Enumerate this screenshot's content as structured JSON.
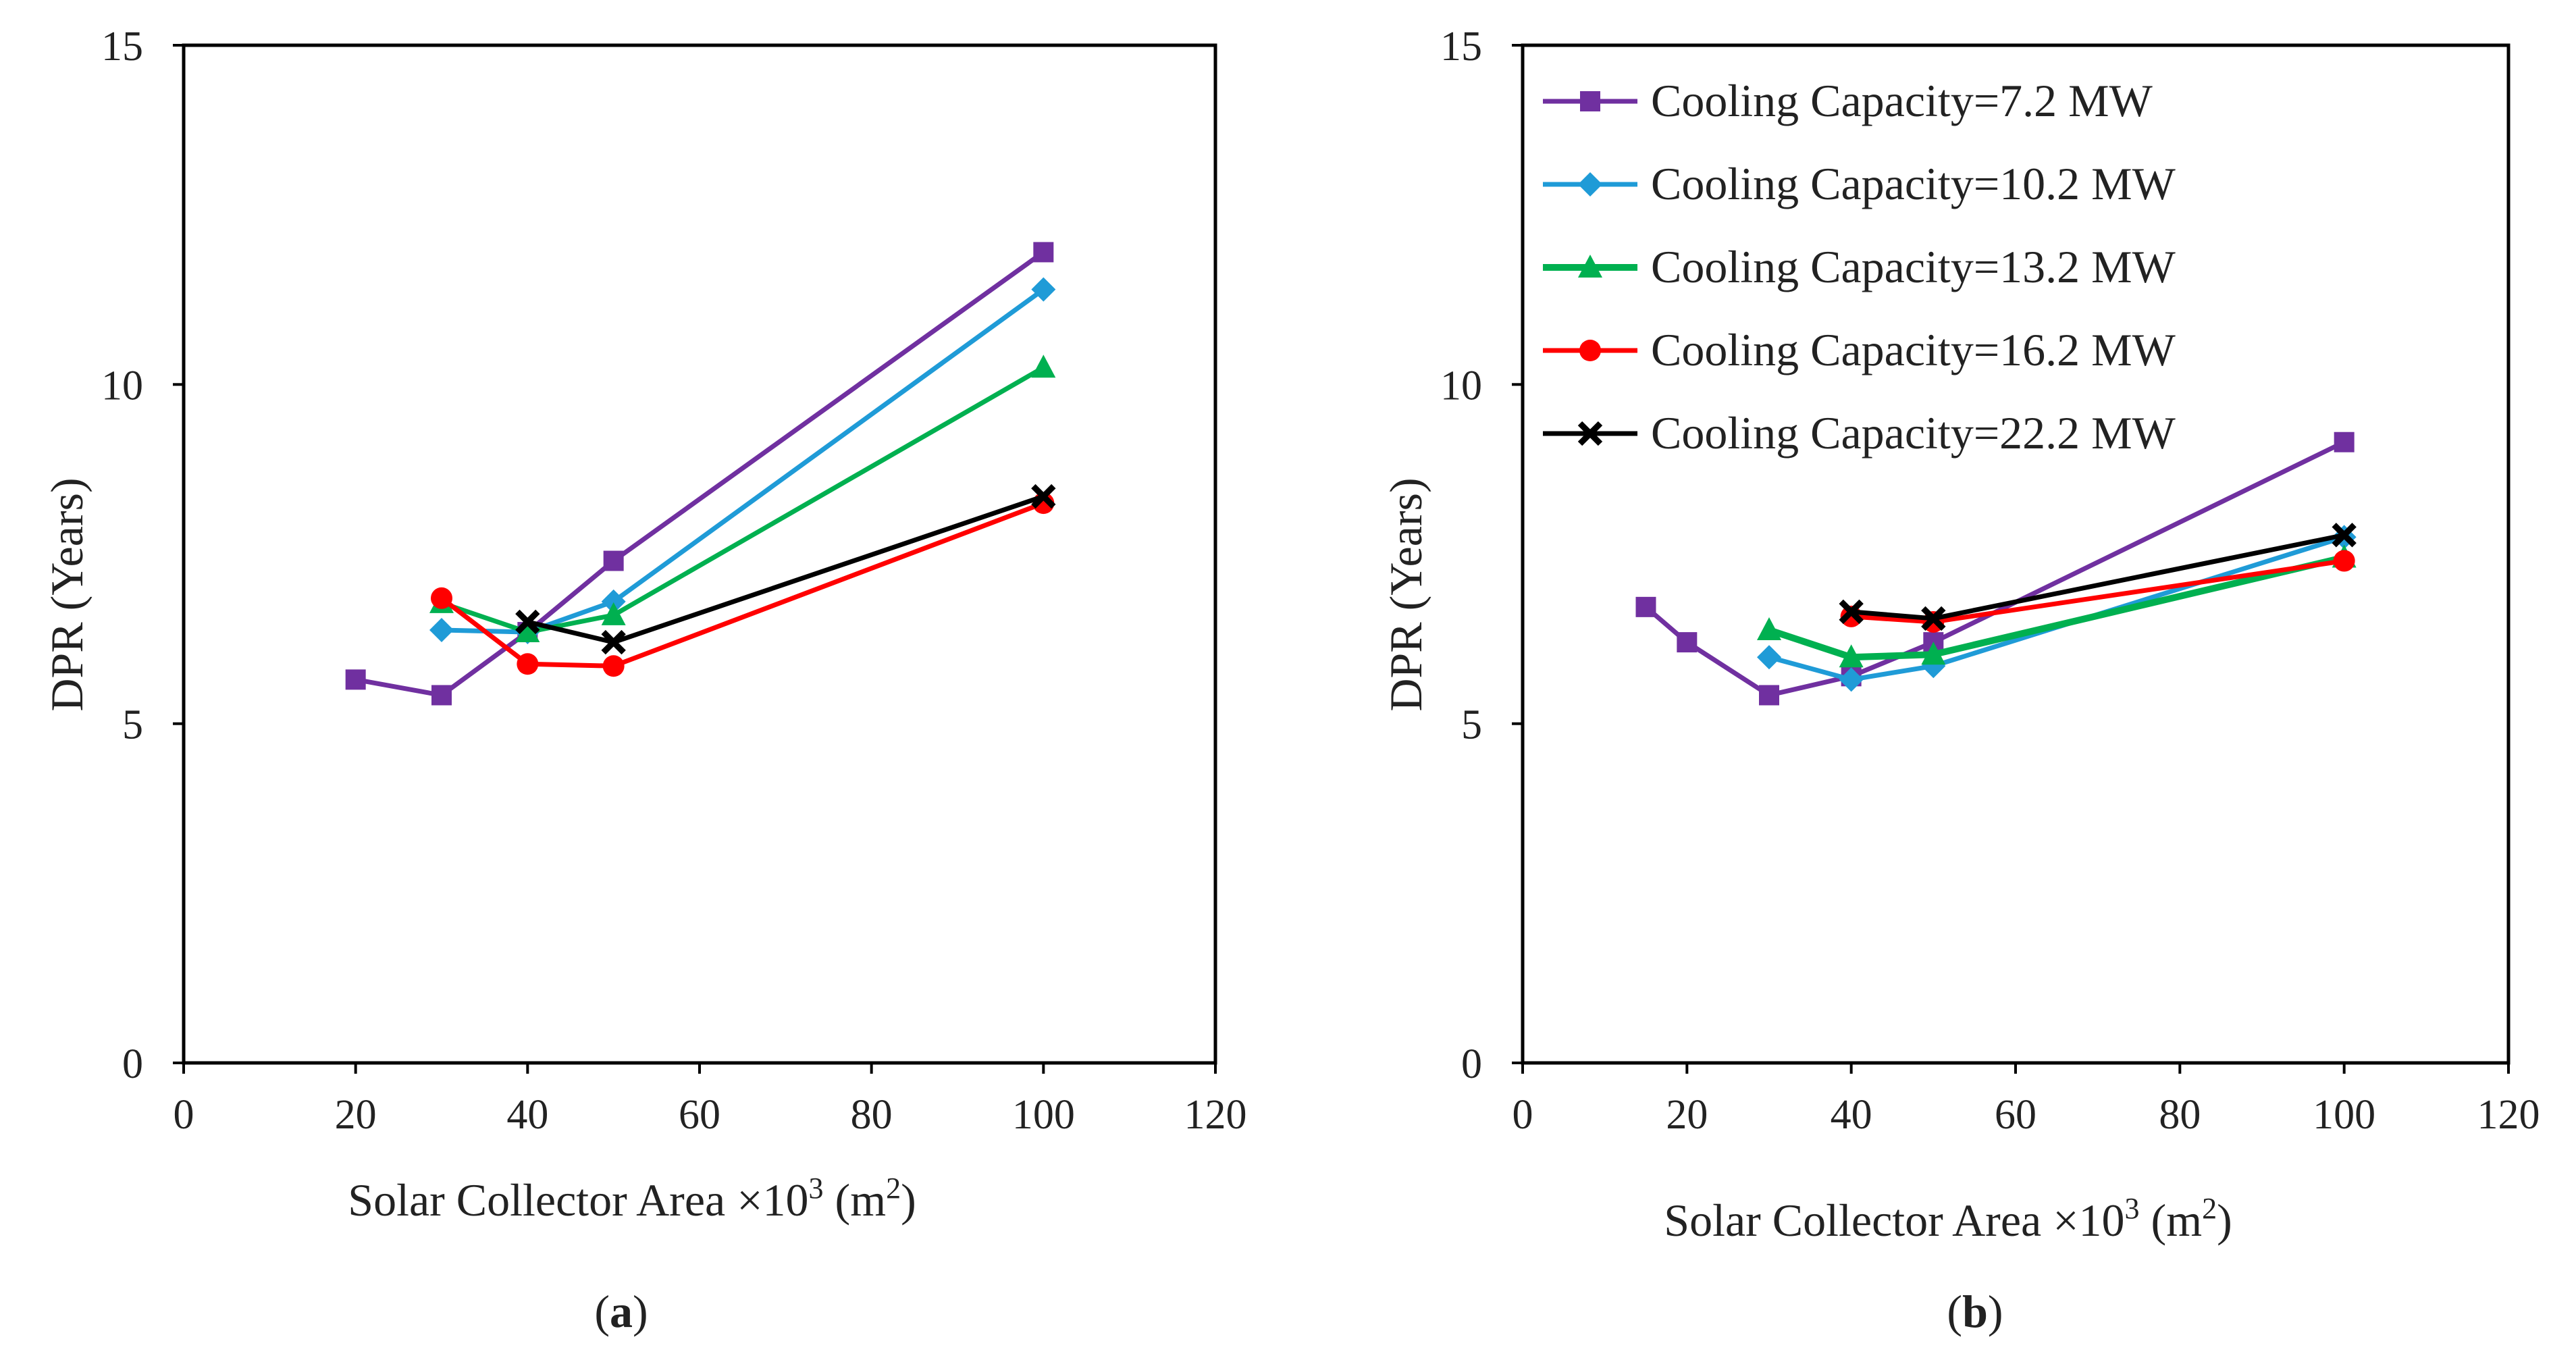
{
  "chart_data": [
    {
      "type": "line",
      "panel_label": "a",
      "xlabel": "Solar Collector Area ×10",
      "xlabel_sup": "3",
      "xlabel_unit": "(m",
      "xlabel_unit_sup": "2",
      "xlabel_unit_close": ")",
      "ylabel": "DPR (Years)",
      "xlim": [
        0,
        120
      ],
      "ylim": [
        0,
        15
      ],
      "xticks": [
        "0",
        "20",
        "40",
        "60",
        "80",
        "100",
        "120"
      ],
      "yticks": [
        "0",
        "5",
        "10",
        "15"
      ],
      "legend": "none",
      "series": [
        {
          "name": "Cooling Capacity=7.2 MW",
          "color": "#7030a0",
          "marker": "square",
          "x": [
            20,
            30,
            40,
            50,
            100
          ],
          "y": [
            5.65,
            5.42,
            6.35,
            7.4,
            11.95
          ]
        },
        {
          "name": "Cooling Capacity=10.2 MW",
          "color": "#1f9bd7",
          "marker": "diamond",
          "x": [
            30,
            40,
            50,
            100
          ],
          "y": [
            6.38,
            6.35,
            6.8,
            11.4
          ]
        },
        {
          "name": "Cooling Capacity=13.2 MW",
          "color": "#00b050",
          "marker": "triangle",
          "x": [
            30,
            40,
            50,
            100
          ],
          "y": [
            6.78,
            6.35,
            6.6,
            10.25
          ]
        },
        {
          "name": "Cooling Capacity=16.2 MW",
          "color": "#ff0000",
          "marker": "circle",
          "x": [
            30,
            40,
            50,
            100
          ],
          "y": [
            6.85,
            5.88,
            5.85,
            8.25
          ]
        },
        {
          "name": "Cooling Capacity=22.2 MW",
          "color": "#000000",
          "marker": "x",
          "x": [
            40,
            50,
            100
          ],
          "y": [
            6.5,
            6.2,
            8.35
          ]
        }
      ]
    },
    {
      "type": "line",
      "panel_label": "b",
      "xlabel": "Solar Collector Area ×10",
      "xlabel_sup": "3",
      "xlabel_unit": "(m",
      "xlabel_unit_sup": "2",
      "xlabel_unit_close": ")",
      "ylabel": "DPR (Years)",
      "xlim": [
        0,
        120
      ],
      "ylim": [
        0,
        15
      ],
      "xticks": [
        "0",
        "20",
        "40",
        "60",
        "80",
        "100",
        "120"
      ],
      "yticks": [
        "0",
        "5",
        "10",
        "15"
      ],
      "legend": "top-left",
      "series": [
        {
          "name": "Cooling Capacity=7.2 MW",
          "color": "#7030a0",
          "marker": "square",
          "x": [
            15,
            20,
            30,
            40,
            50,
            100
          ],
          "y": [
            6.72,
            6.2,
            5.42,
            5.7,
            6.2,
            9.15
          ]
        },
        {
          "name": "Cooling Capacity=10.2 MW",
          "color": "#1f9bd7",
          "marker": "diamond",
          "x": [
            30,
            40,
            50,
            100
          ],
          "y": [
            5.98,
            5.65,
            5.85,
            7.75
          ]
        },
        {
          "name": "Cooling Capacity=13.2 MW",
          "color": "#00b050",
          "marker": "triangle",
          "x": [
            30,
            40,
            50,
            100
          ],
          "y": [
            6.38,
            5.98,
            6.02,
            7.45
          ]
        },
        {
          "name": "Cooling Capacity=16.2 MW",
          "color": "#ff0000",
          "marker": "circle",
          "x": [
            40,
            50,
            100
          ],
          "y": [
            6.58,
            6.5,
            7.4
          ]
        },
        {
          "name": "Cooling Capacity=22.2 MW",
          "color": "#000000",
          "marker": "x",
          "x": [
            40,
            50,
            100
          ],
          "y": [
            6.65,
            6.55,
            7.78
          ]
        }
      ]
    }
  ]
}
